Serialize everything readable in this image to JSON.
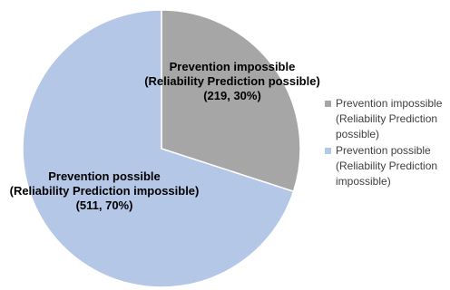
{
  "chart_data": {
    "type": "pie",
    "title": "",
    "slices": [
      {
        "label_lines": [
          "Prevention impossible",
          "(Reliability Prediction possible)"
        ],
        "value": 219,
        "percent": 30,
        "value_text": "(219, 30%)",
        "color": "#a6a6a6"
      },
      {
        "label_lines": [
          "Prevention possible",
          "(Reliability Prediction impossible)"
        ],
        "value": 511,
        "percent": 70,
        "value_text": "(511, 70%)",
        "color": "#b4c7e7"
      }
    ],
    "legend": {
      "placement": "right",
      "items": [
        {
          "lines": [
            "Prevention impossible",
            "(Reliability Prediction",
            "possible)"
          ],
          "color": "#a6a6a6"
        },
        {
          "lines": [
            "Prevention possible",
            "(Reliability Prediction",
            "impossible)"
          ],
          "color": "#b4c7e7"
        }
      ]
    }
  }
}
